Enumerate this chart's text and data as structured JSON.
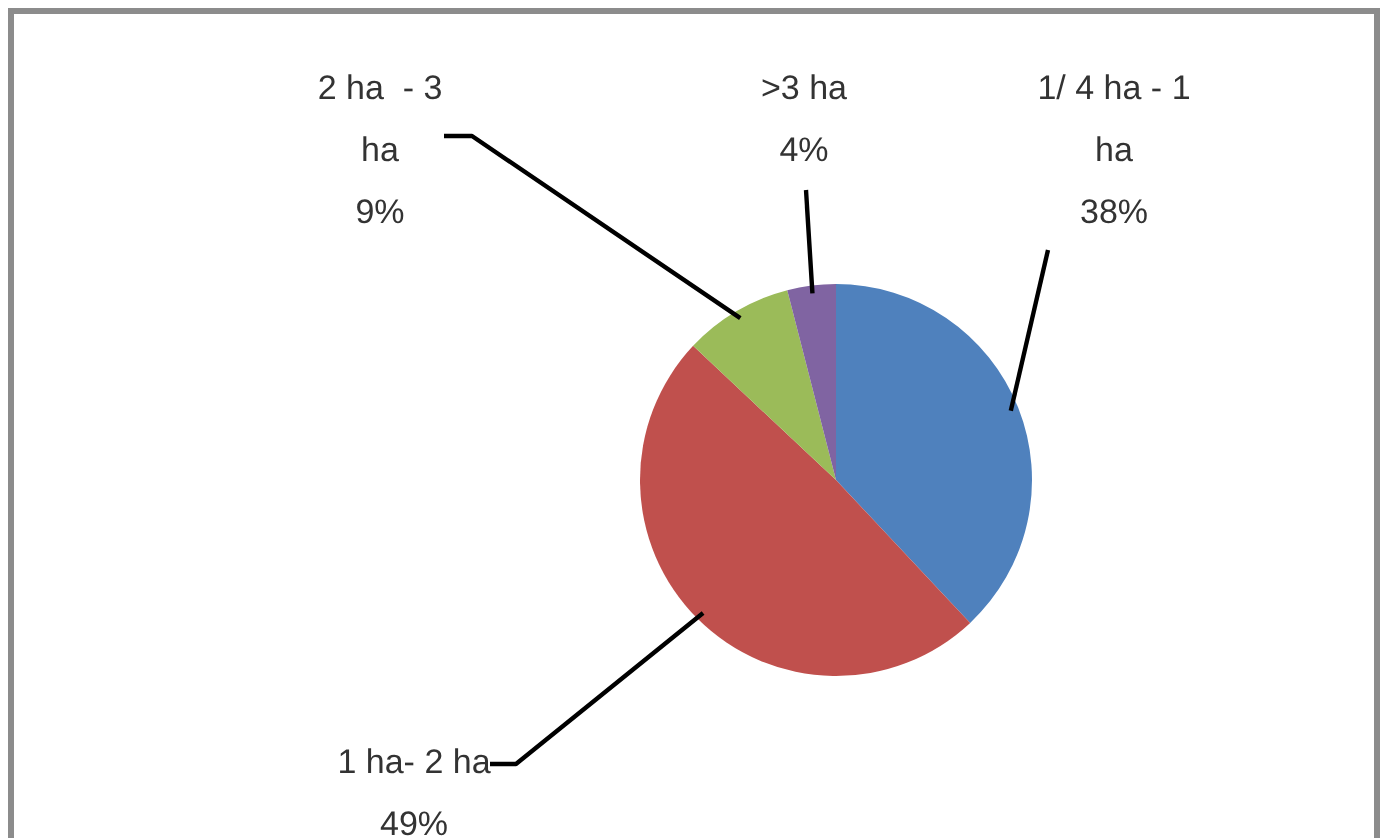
{
  "chart_data": {
    "type": "pie",
    "categories": [
      "1/ 4 ha - 1 ha",
      "1 ha- 2 ha",
      "2 ha  - 3 ha",
      ">3 ha"
    ],
    "values": [
      38,
      49,
      9,
      4
    ],
    "colors": [
      "#4f81bd",
      "#c0504d",
      "#9bbb59",
      "#8064a2"
    ],
    "value_labels": [
      "38%",
      "49%",
      "9%",
      "4%"
    ]
  }
}
